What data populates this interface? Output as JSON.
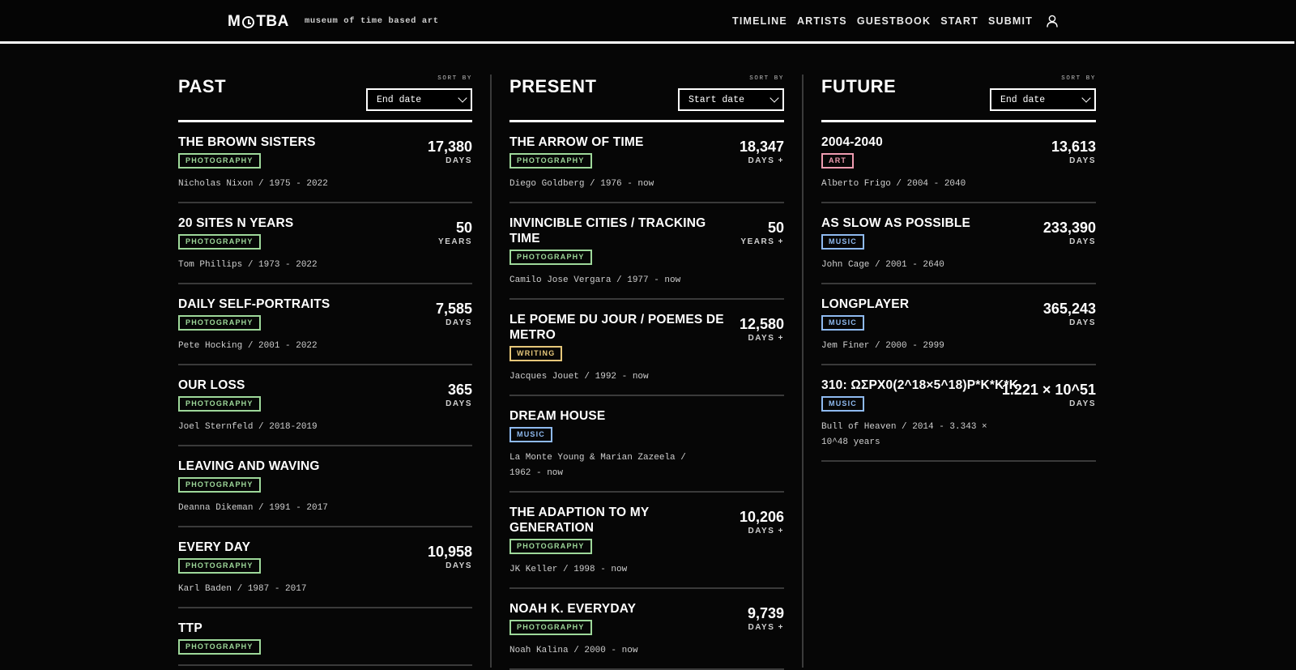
{
  "header": {
    "logo": {
      "left": "M",
      "right": "TBA"
    },
    "tagline": "museum of time based art",
    "nav": [
      "TIMELINE",
      "ARTISTS",
      "GUESTBOOK",
      "START",
      "SUBMIT"
    ]
  },
  "sort_label": "SORT BY",
  "columns": [
    {
      "title": "PAST",
      "sort": "End date",
      "entries": [
        {
          "title": "THE BROWN SISTERS",
          "tag": "PHOTOGRAPHY",
          "meta": "Nicholas Nixon / 1975 - 2022",
          "value": "17,380",
          "unit": "DAYS"
        },
        {
          "title": "20 SITES N YEARS",
          "tag": "PHOTOGRAPHY",
          "meta": "Tom Phillips / 1973 - 2022",
          "value": "50",
          "unit": "YEARS"
        },
        {
          "title": "DAILY SELF-PORTRAITS",
          "tag": "PHOTOGRAPHY",
          "meta": "Pete Hocking / 2001 - 2022",
          "value": "7,585",
          "unit": "DAYS"
        },
        {
          "title": "OUR LOSS",
          "tag": "PHOTOGRAPHY",
          "meta": "Joel Sternfeld / 2018-2019",
          "value": "365",
          "unit": "DAYS"
        },
        {
          "title": "LEAVING AND WAVING",
          "tag": "PHOTOGRAPHY",
          "meta": "Deanna Dikeman / 1991 - 2017",
          "value": "",
          "unit": ""
        },
        {
          "title": "EVERY DAY",
          "tag": "PHOTOGRAPHY",
          "meta": "Karl Baden / 1987 - 2017",
          "value": "10,958",
          "unit": "DAYS"
        },
        {
          "title": "TTP",
          "tag": "PHOTOGRAPHY",
          "meta": "",
          "value": "",
          "unit": ""
        }
      ]
    },
    {
      "title": "PRESENT",
      "sort": "Start date",
      "entries": [
        {
          "title": "THE ARROW OF TIME",
          "tag": "PHOTOGRAPHY",
          "meta": "Diego Goldberg / 1976 - now",
          "value": "18,347",
          "unit": "DAYS +"
        },
        {
          "title": "INVINCIBLE CITIES / TRACKING TIME",
          "tag": "PHOTOGRAPHY",
          "meta": "Camilo Jose Vergara / 1977 - now",
          "value": "50",
          "unit": "YEARS +"
        },
        {
          "title": "LE POEME DU JOUR / POEMES DE METRO",
          "tag": "WRITING",
          "meta": "Jacques Jouet / 1992 - now",
          "value": "12,580",
          "unit": "DAYS +"
        },
        {
          "title": "DREAM HOUSE",
          "tag": "MUSIC",
          "meta": "La Monte Young & Marian Zazeela / 1962 - now",
          "value": "",
          "unit": ""
        },
        {
          "title": "THE ADAPTION TO MY GENERATION",
          "tag": "PHOTOGRAPHY",
          "meta": "JK Keller / 1998 - now",
          "value": "10,206",
          "unit": "DAYS +"
        },
        {
          "title": "NOAH K. EVERYDAY",
          "tag": "PHOTOGRAPHY",
          "meta": "Noah Kalina / 2000 - now",
          "value": "9,739",
          "unit": "DAYS +"
        }
      ]
    },
    {
      "title": "FUTURE",
      "sort": "End date",
      "entries": [
        {
          "title": "2004-2040",
          "tag": "ART",
          "meta": "Alberto Frigo / 2004 - 2040",
          "value": "13,613",
          "unit": "DAYS"
        },
        {
          "title": "AS SLOW AS POSSIBLE",
          "tag": "MUSIC",
          "meta": "John Cage / 2001 - 2640",
          "value": "233,390",
          "unit": "DAYS"
        },
        {
          "title": "LONGPLAYER",
          "tag": "MUSIC",
          "meta": "Jem Finer / 2000 - 2999",
          "value": "365,243",
          "unit": "DAYS"
        },
        {
          "title": "310: ΩΣΡΧ0(2^18×5^18)P*K*K*K",
          "tag": "MUSIC",
          "meta": "Bull of Heaven / 2014 - 3.343 × 10^48 years",
          "value": "1.221 × 10^51",
          "unit": "DAYS"
        }
      ]
    }
  ]
}
